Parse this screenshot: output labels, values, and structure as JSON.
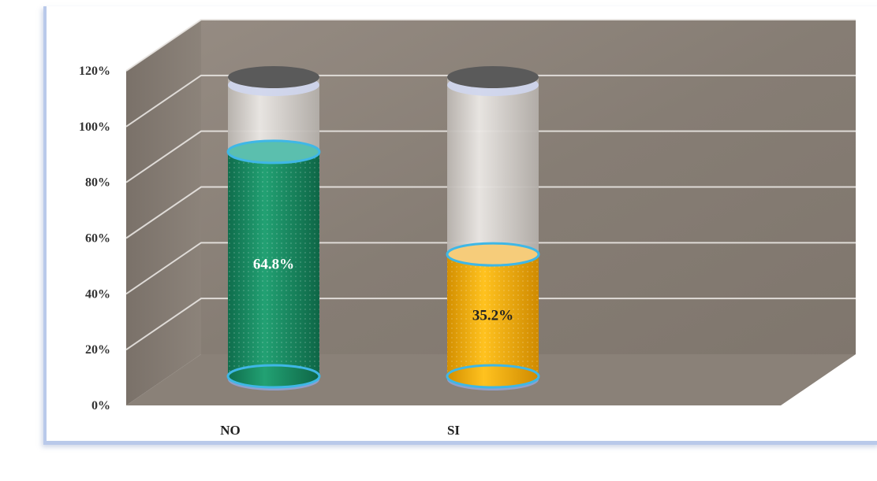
{
  "chart_data": {
    "type": "bar",
    "style": "3d-cylinder",
    "categories": [
      "NO",
      "SI"
    ],
    "values": [
      64.8,
      35.2
    ],
    "data_labels": [
      "64.8%",
      "35.2%"
    ],
    "ylim": [
      0,
      120
    ],
    "yticks": [
      "0%",
      "20%",
      "40%",
      "60%",
      "80%",
      "100%",
      "120%"
    ],
    "grid": true,
    "legend": "none",
    "colors": {
      "NO": "#1a8a62",
      "SI": "#f0a800",
      "NO_label": "#ffffff",
      "SI_label": "#222222",
      "wall": "#8e857c",
      "glass": "#d9d6d3",
      "rim": "#3fb7e6",
      "cap": "#5a5a5a"
    }
  }
}
